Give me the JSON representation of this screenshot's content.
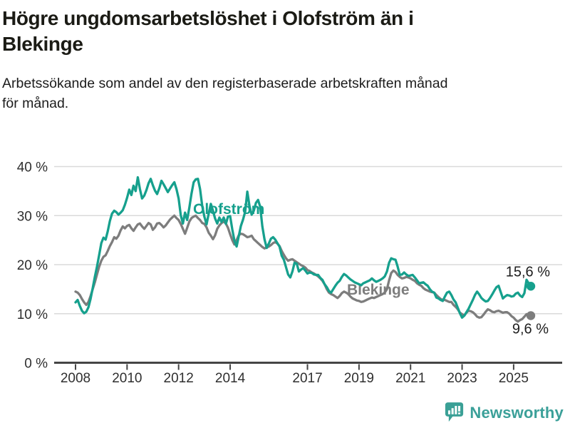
{
  "header": {
    "title_lines": [
      "Högre ungdomsarbetslöshet i Olofström än i",
      "Blekinge"
    ],
    "subtitle_lines": [
      "Arbetssökande som andel av den registerbaserade arbetskraften månad",
      "för månad."
    ]
  },
  "branding": {
    "logo_text": "Newsworthy",
    "color": "#3ba099"
  },
  "chart_data": {
    "type": "line",
    "title": "Högre ungdomsarbetslöshet i Olofström än i Blekinge",
    "subtitle": "Arbetssökande som andel av den registerbaserade arbetskraften månad för månad.",
    "unit": "%",
    "frequency": "monthly",
    "x_start": "2008-01",
    "x_end": "2025-09",
    "grid": "horizontal",
    "ylim": [
      0,
      43
    ],
    "x_axis": {
      "tick_years": [
        2008,
        2010,
        2012,
        2014,
        2017,
        2019,
        2021,
        2023,
        2025
      ]
    },
    "y_axis": {
      "labels": [
        "0 %",
        "10 %",
        "20 %",
        "30 %",
        "40 %"
      ],
      "tick_values": [
        0,
        10,
        20,
        30,
        40
      ]
    },
    "series": [
      {
        "name": "Olofström",
        "color": "#16a08d",
        "end_value": 15.6,
        "end_label": "15,6 %",
        "values": [
          12.3,
          12.8,
          11.6,
          10.6,
          10.1,
          10.4,
          11.3,
          13.0,
          15.2,
          17.5,
          19.6,
          22.0,
          24.4,
          25.5,
          25.1,
          26.8,
          28.9,
          30.4,
          31.0,
          30.7,
          30.2,
          30.6,
          31.1,
          32.2,
          33.6,
          35.3,
          34.2,
          36.1,
          35.0,
          37.8,
          35.4,
          33.5,
          34.1,
          35.2,
          36.6,
          37.5,
          36.2,
          35.1,
          34.4,
          35.6,
          37.1,
          36.4,
          35.6,
          34.8,
          35.5,
          36.2,
          36.8,
          35.4,
          33.5,
          30.1,
          28.4,
          30.6,
          29.1,
          31.7,
          34.5,
          36.8,
          37.4,
          37.5,
          35.4,
          32.0,
          29.8,
          28.2,
          30.4,
          32.4,
          31.0,
          29.4,
          28.4,
          29.6,
          28.7,
          29.6,
          28.3,
          29.8,
          29.9,
          27.2,
          24.9,
          23.7,
          25.8,
          27.9,
          29.2,
          30.8,
          34.9,
          32.0,
          30.2,
          31.0,
          32.6,
          33.2,
          31.8,
          27.8,
          25.2,
          23.4,
          24.3,
          25.3,
          25.6,
          25.1,
          24.4,
          23.7,
          21.8,
          21.0,
          19.5,
          18.0,
          17.4,
          18.6,
          20.4,
          20.2,
          18.6,
          19.0,
          19.3,
          18.8,
          18.2,
          18.4,
          18.3,
          18.0,
          17.9,
          17.9,
          17.3,
          16.9,
          16.0,
          15.4,
          14.6,
          14.3,
          15.0,
          15.7,
          16.3,
          16.7,
          17.5,
          18.1,
          17.8,
          17.4,
          17.0,
          16.7,
          16.4,
          16.2,
          16.0,
          15.8,
          16.2,
          16.4,
          16.6,
          16.8,
          17.2,
          16.8,
          16.5,
          16.7,
          16.9,
          17.2,
          17.6,
          18.6,
          20.4,
          21.3,
          21.1,
          21.0,
          19.6,
          17.9,
          18.0,
          18.4,
          18.0,
          17.7,
          17.8,
          17.9,
          17.4,
          16.8,
          16.2,
          16.3,
          16.4,
          16.0,
          15.7,
          15.0,
          14.5,
          14.3,
          13.3,
          13.1,
          12.8,
          12.6,
          13.5,
          14.3,
          14.5,
          13.8,
          12.9,
          12.3,
          11.2,
          10.1,
          9.2,
          9.6,
          10.3,
          11.0,
          11.9,
          12.8,
          13.8,
          14.5,
          13.9,
          13.2,
          12.8,
          12.5,
          12.6,
          13.2,
          13.9,
          14.7,
          15.4,
          15.7,
          14.4,
          13.1,
          13.5,
          13.8,
          13.7,
          13.5,
          13.6,
          14.1,
          14.3,
          13.7,
          13.4,
          14.2,
          16.9,
          16.2,
          15.6
        ]
      },
      {
        "name": "Blekinge",
        "color": "#7d7d7d",
        "end_value": 9.6,
        "end_label": "9,6 %",
        "values": [
          14.5,
          14.3,
          13.8,
          13.0,
          12.3,
          11.8,
          12.4,
          13.6,
          15.0,
          16.4,
          18.0,
          19.6,
          20.8,
          21.6,
          21.9,
          22.8,
          23.8,
          24.6,
          25.6,
          25.3,
          25.9,
          27.0,
          27.8,
          27.4,
          27.9,
          28.1,
          27.4,
          26.9,
          27.6,
          28.2,
          28.4,
          27.8,
          27.3,
          27.9,
          28.5,
          28.2,
          27.1,
          27.6,
          28.4,
          28.5,
          28.1,
          27.6,
          28.0,
          28.6,
          29.2,
          29.6,
          30.0,
          29.5,
          29.1,
          28.3,
          27.3,
          26.3,
          27.5,
          28.8,
          29.5,
          29.8,
          30.0,
          29.5,
          29.1,
          28.5,
          28.3,
          27.6,
          26.5,
          25.9,
          25.2,
          26.0,
          27.3,
          28.0,
          28.5,
          28.8,
          28.4,
          27.5,
          26.2,
          25.0,
          24.1,
          25.0,
          26.0,
          26.3,
          26.2,
          25.9,
          25.6,
          25.7,
          25.9,
          25.2,
          24.8,
          24.4,
          24.0,
          23.6,
          23.3,
          23.5,
          23.7,
          24.0,
          24.4,
          24.6,
          24.3,
          23.8,
          22.8,
          22.0,
          21.3,
          20.8,
          21.0,
          21.1,
          20.8,
          20.5,
          20.2,
          19.9,
          19.7,
          19.4,
          18.9,
          18.7,
          18.4,
          18.2,
          17.9,
          17.6,
          17.2,
          16.7,
          16.0,
          15.0,
          14.3,
          14.0,
          13.8,
          13.5,
          13.2,
          13.6,
          14.2,
          14.5,
          14.3,
          14.0,
          13.5,
          13.1,
          12.9,
          12.7,
          12.6,
          12.4,
          12.5,
          12.7,
          12.9,
          13.1,
          13.3,
          13.2,
          13.4,
          13.6,
          13.8,
          14.0,
          14.3,
          15.0,
          16.8,
          18.3,
          18.8,
          18.5,
          17.9,
          17.5,
          17.2,
          17.3,
          17.5,
          17.4,
          17.2,
          16.9,
          16.7,
          16.2,
          15.9,
          15.7,
          15.2,
          14.9,
          14.7,
          14.5,
          14.4,
          14.3,
          13.8,
          13.4,
          13.0,
          12.8,
          12.8,
          12.6,
          12.4,
          12.4,
          11.8,
          11.4,
          10.9,
          10.2,
          9.9,
          9.6,
          10.2,
          10.6,
          10.5,
          10.3,
          9.9,
          9.4,
          9.2,
          9.3,
          9.8,
          10.4,
          10.9,
          10.7,
          10.4,
          10.3,
          10.5,
          10.6,
          10.4,
          10.2,
          10.3,
          10.3,
          10.0,
          9.5,
          9.2,
          8.7,
          8.4,
          8.7,
          8.9,
          9.4,
          9.9,
          9.8,
          9.6
        ]
      }
    ]
  }
}
